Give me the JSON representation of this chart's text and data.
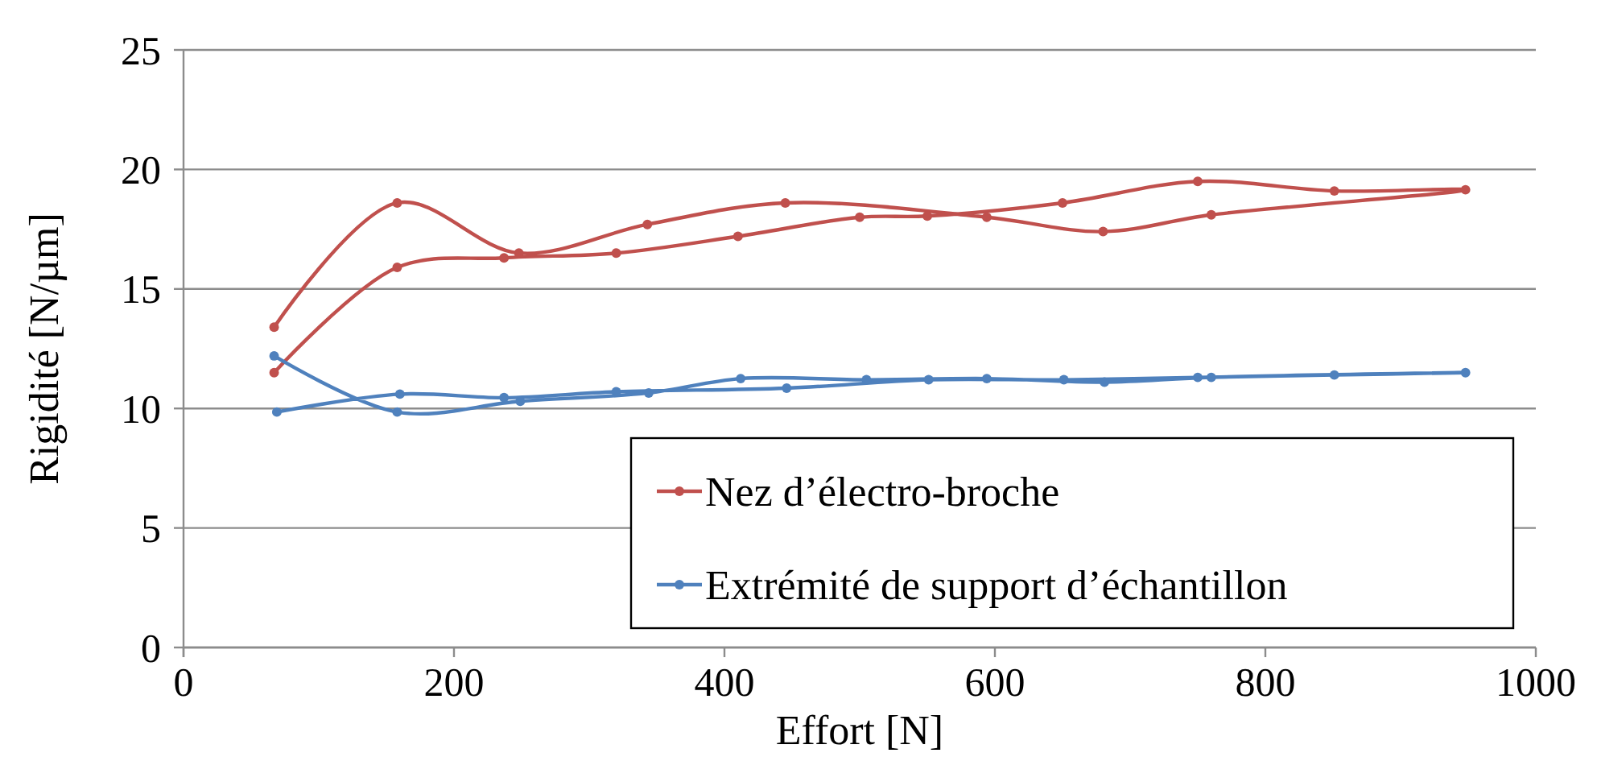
{
  "chart_data": {
    "type": "line",
    "xlabel": "Effort [N]",
    "ylabel": "Rigidité [N/µm]",
    "xlim": [
      0,
      1000
    ],
    "xticks": [
      0,
      200,
      400,
      600,
      800,
      1000
    ],
    "ylim": [
      0,
      25
    ],
    "yticks": [
      0,
      5,
      10,
      15,
      20,
      25
    ],
    "grid": "y",
    "legend": "bottom right",
    "marker": "circle",
    "line_style": "solid",
    "series": [
      {
        "name": "Nez d’électro-broche",
        "color": "#c0504d",
        "x": [
          67,
          158,
          237,
          320,
          410,
          500,
          550,
          650,
          750,
          851,
          948,
          760,
          680,
          594,
          445,
          343,
          248,
          158,
          67
        ],
        "values": [
          11.5,
          15.9,
          16.3,
          16.5,
          17.2,
          18.0,
          18.05,
          18.6,
          19.5,
          19.1,
          19.15,
          18.1,
          17.4,
          18.0,
          18.6,
          17.7,
          16.5,
          18.6,
          13.4
        ]
      },
      {
        "name": "Extrémité de support d’échantillon",
        "color": "#4f81bd",
        "x": [
          69,
          160,
          237,
          320,
          446,
          551,
          651,
          750,
          851,
          948,
          760,
          681,
          594,
          505,
          412,
          344,
          249,
          158,
          67
        ],
        "values": [
          9.85,
          10.6,
          10.45,
          10.7,
          10.85,
          11.2,
          11.2,
          11.3,
          11.4,
          11.5,
          11.3,
          11.1,
          11.25,
          11.2,
          11.25,
          10.65,
          10.3,
          9.85,
          12.2
        ]
      }
    ]
  }
}
